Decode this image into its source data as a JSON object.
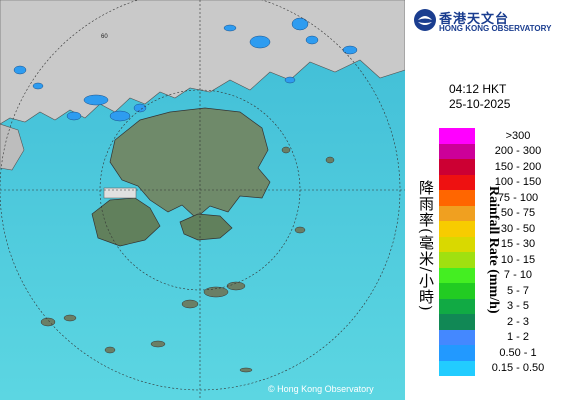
{
  "header": {
    "org_cn": "香港天文台",
    "org_en": "HONG KONG OBSERVATORY"
  },
  "timestamp": {
    "time": "04:12 HKT",
    "date": "25-10-2025"
  },
  "map": {
    "credit": "© Hong Kong Observatory",
    "range_ring_label": "60"
  },
  "legend": {
    "title_cn": "降雨率(毫米/小時)",
    "title_en": "Rainfall Rate (mm/h)",
    "items": [
      {
        "label": ">300",
        "color": "#ff00ff"
      },
      {
        "label": "200 - 300",
        "color": "#cc0099"
      },
      {
        "label": "150 - 200",
        "color": "#cc0033"
      },
      {
        "label": "100 - 150",
        "color": "#ee1111"
      },
      {
        "label": "75 - 100",
        "color": "#ff6600"
      },
      {
        "label": "50 - 75",
        "color": "#f0a020"
      },
      {
        "label": "30 - 50",
        "color": "#f7cc00"
      },
      {
        "label": "15 - 30",
        "color": "#d9d900"
      },
      {
        "label": "10 - 15",
        "color": "#a0e010"
      },
      {
        "label": "7 - 10",
        "color": "#44ee22"
      },
      {
        "label": "5 - 7",
        "color": "#22cc22"
      },
      {
        "label": "3 - 5",
        "color": "#11aa44"
      },
      {
        "label": "2 - 3",
        "color": "#118855"
      },
      {
        "label": "1 - 2",
        "color": "#4488ff"
      },
      {
        "label": "0.50 - 1",
        "color": "#2299ff"
      },
      {
        "label": "0.15 - 0.50",
        "color": "#22ccff"
      }
    ]
  }
}
